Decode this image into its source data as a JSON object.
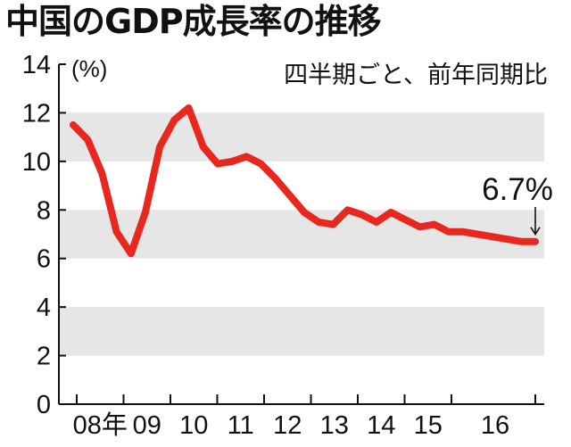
{
  "chart_data": {
    "type": "line",
    "title": "中国のGDP成長率の推移",
    "subtitle": "四半期ごと、前年同期比",
    "ylabel": "(%)",
    "ylim": [
      0,
      14
    ],
    "yticks": [
      "0",
      "2",
      "4",
      "6",
      "8",
      "10",
      "12",
      "14"
    ],
    "x_year_labels": [
      "08年",
      "09",
      "10",
      "11",
      "12",
      "13",
      "14",
      "15",
      "16"
    ],
    "grid": "alternating horizontal bands",
    "line_color": "#e8281e",
    "band_color": "#e6e6e6",
    "series": [
      {
        "values": [
          11.5,
          10.9,
          9.5,
          7.1,
          6.2,
          7.9,
          10.6,
          11.7,
          12.2,
          10.6,
          9.9,
          10.0,
          10.2,
          9.9,
          9.3,
          8.6,
          7.9,
          7.5,
          7.4,
          8.0,
          7.8,
          7.5,
          7.9,
          7.6,
          7.3,
          7.4,
          7.1,
          7.1,
          7.0,
          6.9,
          6.8,
          6.7,
          6.7
        ]
      }
    ],
    "annotation": {
      "text": "6.7%",
      "value": 6.7
    }
  }
}
